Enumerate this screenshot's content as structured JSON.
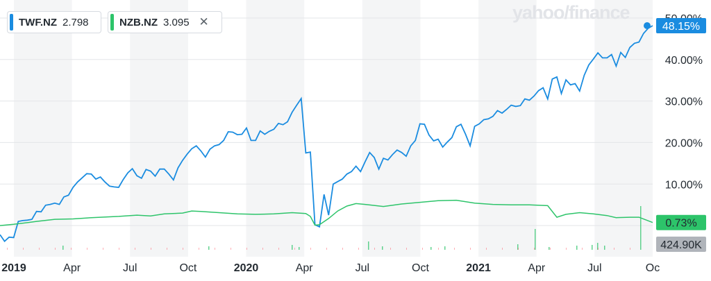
{
  "logo": "yahoo/finance",
  "chips": [
    {
      "symbol": "TWF.NZ",
      "value": "2.798",
      "color": "#1a8ce0"
    },
    {
      "symbol": "NZB.NZ",
      "value": "3.095",
      "color": "#2dc46a",
      "close": "✕"
    }
  ],
  "chart_data": {
    "type": "line",
    "x_ticks": [
      "2019",
      "Apr",
      "Jul",
      "Oct",
      "2020",
      "Apr",
      "Jul",
      "Oct",
      "2021",
      "Apr",
      "Jul",
      "Oc"
    ],
    "y_ticks": [
      "10.00%",
      "20.00%",
      "30.00%",
      "40.00%",
      "50.00%"
    ],
    "ylim": [
      -5,
      53
    ],
    "grid": true,
    "series": [
      {
        "name": "TWF.NZ",
        "color": "#1a8ce0",
        "badge": "48.15%",
        "x": [
          0,
          1,
          2,
          3,
          4,
          5,
          6,
          7,
          8,
          9,
          10,
          11,
          12,
          13,
          14,
          15,
          16,
          17,
          18,
          19,
          20,
          21,
          22,
          23,
          24,
          25,
          26,
          27,
          28,
          29,
          30,
          31,
          32,
          33,
          34,
          35,
          36,
          37,
          38,
          39,
          40,
          41,
          42,
          43,
          44,
          45,
          46,
          47,
          48,
          49,
          50,
          51,
          52,
          53,
          54,
          55,
          56,
          57,
          58,
          59,
          60,
          61,
          62,
          63,
          64,
          65,
          66,
          67,
          68,
          69,
          70,
          71,
          72,
          73,
          74,
          75,
          76,
          77,
          78,
          79,
          80,
          81,
          82,
          83,
          84,
          85,
          86,
          87,
          88,
          89,
          90,
          91,
          92,
          93,
          94,
          95,
          96,
          97,
          98,
          99,
          100,
          101,
          102,
          103,
          104,
          105,
          106,
          107,
          108,
          109,
          110,
          111,
          112,
          113,
          114,
          115,
          116,
          117,
          118,
          119,
          120,
          121,
          122,
          123,
          124,
          125,
          126,
          127,
          128,
          129,
          130,
          131,
          132,
          133,
          134,
          135,
          136,
          137,
          138,
          139,
          140,
          141,
          142,
          143
        ],
        "values": [
          -2.2,
          -3.8,
          -2.8,
          -2.9,
          1,
          1.2,
          1.3,
          1.5,
          3.4,
          3.3,
          4.9,
          5.1,
          5.4,
          5.1,
          6.9,
          7.3,
          9.2,
          10.5,
          11.5,
          12.5,
          12.4,
          11.2,
          11.7,
          10.5,
          9.5,
          9.3,
          9.2,
          11.1,
          12.7,
          13.7,
          12,
          11.4,
          13.5,
          13.1,
          11.9,
          13.6,
          13.6,
          12.4,
          11,
          13.9,
          15.7,
          17.2,
          18.5,
          19.2,
          18,
          16.5,
          18.4,
          19.2,
          19.5,
          20.5,
          22.6,
          22.5,
          21.9,
          22,
          23.5,
          20.5,
          20.5,
          22.8,
          22,
          22.7,
          23.2,
          24.6,
          24.3,
          25,
          27.3,
          29,
          30.6,
          17.5,
          17.7,
          0.2,
          -0.3,
          7.5,
          2.5,
          10,
          10.6,
          11.2,
          12.4,
          13,
          14.3,
          13,
          15.4,
          17.6,
          16.4,
          13.6,
          16.2,
          15.8,
          17.1,
          18.2,
          17.6,
          16.7,
          19.2,
          20.5,
          24.5,
          24.4,
          21.8,
          20.4,
          20.8,
          18.9,
          20.1,
          21.2,
          23.8,
          24.4,
          22,
          19.2,
          23.9,
          24.5,
          25.5,
          25.7,
          26.3,
          27.7,
          27.1,
          28,
          29,
          28.7,
          28.9,
          30.5,
          30.2,
          31.2,
          32.5,
          33.2,
          30.5,
          35.3,
          35.8,
          31.8,
          35.1,
          33.9,
          34.2,
          32.4,
          36.2,
          38.7,
          40.1,
          41.6,
          40.4,
          40.4,
          41.2,
          38.4,
          41.7,
          40.5,
          42.9,
          43.9,
          44.2,
          46.3,
          47.5,
          48.15
        ]
      },
      {
        "name": "NZB.NZ",
        "color": "#2dc46a",
        "badge": "0.73%",
        "x": [
          0,
          3,
          6,
          8,
          12,
          16,
          20,
          26,
          30,
          33,
          36,
          40,
          42,
          44,
          48,
          52,
          56,
          60,
          64,
          67,
          68,
          69,
          70,
          72,
          74,
          76,
          78,
          80,
          84,
          88,
          92,
          96,
          100,
          104,
          108,
          112,
          116,
          120,
          122,
          124,
          127,
          130,
          133,
          135,
          138,
          140,
          143
        ],
        "values": [
          0,
          0.3,
          0.7,
          1,
          1.5,
          1.6,
          1.9,
          2.2,
          2.5,
          2.3,
          2.8,
          3,
          3.5,
          3.4,
          3.1,
          2.8,
          2.7,
          2.8,
          3.1,
          2.9,
          2.2,
          0.1,
          0.2,
          1.7,
          3.5,
          4.7,
          5.3,
          5.1,
          4.6,
          5.2,
          5.6,
          6,
          6.1,
          5.4,
          5.1,
          5,
          5,
          4.8,
          2,
          2.7,
          3.1,
          2.8,
          2.4,
          1.9,
          2,
          2,
          0.73
        ]
      }
    ],
    "volume_badge": "424.90K"
  }
}
